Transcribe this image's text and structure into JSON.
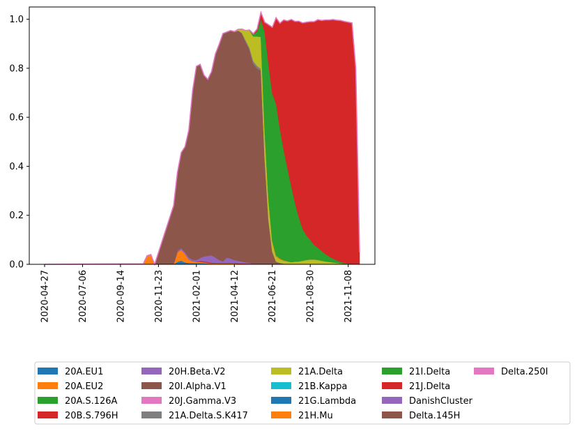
{
  "chart_data": {
    "type": "area",
    "stacked": true,
    "title": "",
    "xlabel": "",
    "ylabel": "",
    "x_range": [
      "2020-04-27",
      "2021-11-29"
    ],
    "ylim": [
      0,
      1.05
    ],
    "yticks": [
      "0.0",
      "0.2",
      "0.4",
      "0.6",
      "0.8",
      "1.0"
    ],
    "xticks": [
      "2020-04-27",
      "2020-07-06",
      "2020-09-14",
      "2020-11-23",
      "2021-02-01",
      "2021-04-12",
      "2021-06-21",
      "2021-08-30",
      "2021-11-08"
    ],
    "grid": false,
    "legend": {
      "placement": "below chart",
      "columns": 5
    },
    "x": [
      "2020-04-27",
      "2020-10-26",
      "2020-11-02",
      "2020-11-09",
      "2020-11-16",
      "2020-12-21",
      "2020-12-28",
      "2021-01-04",
      "2021-01-11",
      "2021-01-18",
      "2021-01-25",
      "2021-02-01",
      "2021-02-08",
      "2021-02-15",
      "2021-02-22",
      "2021-03-01",
      "2021-03-08",
      "2021-03-15",
      "2021-03-22",
      "2021-03-29",
      "2021-04-05",
      "2021-04-12",
      "2021-04-19",
      "2021-04-26",
      "2021-05-03",
      "2021-05-10",
      "2021-05-17",
      "2021-05-24",
      "2021-05-31",
      "2021-06-07",
      "2021-06-14",
      "2021-06-21",
      "2021-06-28",
      "2021-07-05",
      "2021-07-12",
      "2021-07-19",
      "2021-07-26",
      "2021-08-02",
      "2021-08-09",
      "2021-08-16",
      "2021-08-23",
      "2021-08-30",
      "2021-09-06",
      "2021-09-13",
      "2021-09-20",
      "2021-09-27",
      "2021-10-04",
      "2021-10-11",
      "2021-10-18",
      "2021-10-25",
      "2021-11-01",
      "2021-11-08",
      "2021-11-15",
      "2021-11-22",
      "2021-11-29"
    ],
    "series": [
      {
        "name": "20A.EU1",
        "color": "#1f77b4",
        "values": [
          0,
          0,
          0,
          0,
          0,
          0,
          0.01,
          0.015,
          0.008,
          0.005,
          0.005,
          0.005,
          0.005,
          0.004,
          0.003,
          0.002,
          0.002,
          0.002,
          0.002,
          0.002,
          0.002,
          0.002,
          0.001,
          0.001,
          0.001,
          0.001,
          0,
          0,
          0,
          0,
          0,
          0,
          0,
          0,
          0,
          0,
          0,
          0,
          0,
          0,
          0,
          0,
          0,
          0,
          0,
          0,
          0,
          0,
          0,
          0,
          0,
          0,
          0,
          0,
          0
        ]
      },
      {
        "name": "20A.EU2",
        "color": "#ff7f0e",
        "values": [
          0,
          0.002,
          0.035,
          0.04,
          0,
          0,
          0.04,
          0.045,
          0.035,
          0.015,
          0.008,
          0.005,
          0.005,
          0.004,
          0.003,
          0.002,
          0.002,
          0.002,
          0.002,
          0.002,
          0.002,
          0.002,
          0.001,
          0.001,
          0.001,
          0.001,
          0,
          0,
          0,
          0,
          0,
          0,
          0,
          0,
          0,
          0,
          0,
          0,
          0,
          0,
          0,
          0,
          0,
          0,
          0,
          0,
          0,
          0,
          0,
          0,
          0,
          0,
          0,
          0,
          0
        ]
      },
      {
        "name": "20A.S.126A",
        "color": "#2ca02c",
        "values": [
          0,
          0,
          0,
          0,
          0,
          0,
          0,
          0,
          0,
          0,
          0,
          0,
          0,
          0,
          0,
          0,
          0,
          0,
          0,
          0,
          0,
          0,
          0,
          0,
          0,
          0,
          0,
          0,
          0,
          0,
          0,
          0,
          0,
          0,
          0,
          0,
          0,
          0,
          0,
          0,
          0,
          0,
          0,
          0,
          0,
          0,
          0,
          0,
          0,
          0,
          0,
          0,
          0,
          0,
          0
        ]
      },
      {
        "name": "20B.S.796H",
        "color": "#d62728",
        "values": [
          0,
          0,
          0,
          0,
          0,
          0,
          0,
          0,
          0,
          0,
          0,
          0,
          0.004,
          0.004,
          0.004,
          0.003,
          0.002,
          0.002,
          0.002,
          0.002,
          0.002,
          0.002,
          0.002,
          0.002,
          0.001,
          0.001,
          0,
          0,
          0,
          0,
          0,
          0,
          0,
          0,
          0,
          0,
          0,
          0,
          0,
          0,
          0,
          0,
          0,
          0,
          0,
          0,
          0,
          0,
          0,
          0,
          0,
          0,
          0,
          0,
          0
        ]
      },
      {
        "name": "20H.Beta.V2",
        "color": "#9467bd",
        "values": [
          0,
          0,
          0,
          0,
          0,
          0,
          0.005,
          0.006,
          0.007,
          0.008,
          0.006,
          0.008,
          0.012,
          0.02,
          0.025,
          0.03,
          0.022,
          0.012,
          0.006,
          0.022,
          0.018,
          0.012,
          0.01,
          0.008,
          0.005,
          0.003,
          0,
          0,
          0,
          0,
          0,
          0,
          0,
          0,
          0,
          0,
          0,
          0,
          0,
          0,
          0,
          0,
          0,
          0,
          0,
          0,
          0,
          0,
          0,
          0,
          0,
          0,
          0,
          0,
          0
        ]
      },
      {
        "name": "20I.Alpha.V1",
        "color": "#8c564b",
        "values": [
          0,
          0,
          0,
          0,
          0,
          0.24,
          0.32,
          0.39,
          0.43,
          0.52,
          0.69,
          0.79,
          0.79,
          0.74,
          0.72,
          0.75,
          0.83,
          0.88,
          0.93,
          0.92,
          0.93,
          0.93,
          0.94,
          0.93,
          0.9,
          0.87,
          0.82,
          0.8,
          0.79,
          0.43,
          0.18,
          0.05,
          0.01,
          0.005,
          0.003,
          0.002,
          0.001,
          0.001,
          0,
          0,
          0,
          0,
          0,
          0,
          0,
          0,
          0,
          0,
          0,
          0,
          0,
          0,
          0,
          0,
          0
        ]
      },
      {
        "name": "20J.Gamma.V3",
        "color": "#e377c2",
        "values": [
          0,
          0,
          0,
          0,
          0,
          0,
          0,
          0,
          0,
          0,
          0,
          0,
          0,
          0,
          0,
          0,
          0,
          0,
          0,
          0,
          0,
          0,
          0,
          0,
          0,
          0,
          0,
          0,
          0,
          0,
          0,
          0,
          0,
          0,
          0,
          0,
          0,
          0,
          0,
          0,
          0,
          0,
          0,
          0,
          0,
          0,
          0,
          0,
          0,
          0,
          0,
          0,
          0,
          0,
          0
        ]
      },
      {
        "name": "21A.Delta.S.K417",
        "color": "#7f7f7f",
        "values": [
          0,
          0,
          0,
          0,
          0,
          0,
          0,
          0,
          0,
          0,
          0,
          0,
          0,
          0,
          0,
          0,
          0,
          0,
          0,
          0,
          0,
          0,
          0,
          0.003,
          0.006,
          0.008,
          0.01,
          0.01,
          0.008,
          0.006,
          0.004,
          0.003,
          0.002,
          0.001,
          0,
          0,
          0,
          0,
          0,
          0,
          0,
          0,
          0,
          0,
          0,
          0,
          0,
          0,
          0,
          0,
          0,
          0,
          0,
          0,
          0
        ]
      },
      {
        "name": "21A.Delta",
        "color": "#bcbd22",
        "values": [
          0,
          0,
          0,
          0,
          0,
          0,
          0,
          0,
          0,
          0,
          0,
          0,
          0,
          0,
          0,
          0,
          0,
          0,
          0,
          0,
          0,
          0.002,
          0.005,
          0.015,
          0.04,
          0.07,
          0.1,
          0.12,
          0.13,
          0.11,
          0.08,
          0.04,
          0.02,
          0.015,
          0.012,
          0.01,
          0.008,
          0.01,
          0.012,
          0.015,
          0.018,
          0.02,
          0.02,
          0.018,
          0.015,
          0.012,
          0.01,
          0.008,
          0.006,
          0.004,
          0.002,
          0.001,
          0,
          0,
          0
        ]
      },
      {
        "name": "21B.Kappa",
        "color": "#17becf",
        "values": [
          0,
          0,
          0,
          0,
          0,
          0,
          0,
          0,
          0,
          0,
          0,
          0,
          0,
          0,
          0,
          0,
          0,
          0,
          0,
          0,
          0,
          0,
          0,
          0,
          0,
          0,
          0,
          0,
          0,
          0,
          0,
          0,
          0,
          0,
          0,
          0,
          0,
          0,
          0,
          0,
          0,
          0,
          0,
          0,
          0,
          0,
          0,
          0,
          0,
          0,
          0,
          0,
          0,
          0,
          0
        ]
      },
      {
        "name": "21G.Lambda",
        "color": "#1f77b4",
        "values": [
          0,
          0,
          0,
          0,
          0,
          0,
          0,
          0,
          0,
          0,
          0,
          0,
          0,
          0,
          0,
          0,
          0,
          0,
          0,
          0,
          0,
          0,
          0,
          0,
          0,
          0,
          0,
          0,
          0,
          0,
          0,
          0,
          0,
          0,
          0,
          0,
          0,
          0,
          0,
          0,
          0,
          0,
          0,
          0,
          0,
          0,
          0,
          0,
          0,
          0,
          0,
          0,
          0,
          0,
          0
        ]
      },
      {
        "name": "21H.Mu",
        "color": "#ff7f0e",
        "values": [
          0,
          0,
          0,
          0,
          0,
          0,
          0,
          0,
          0,
          0,
          0,
          0,
          0,
          0,
          0,
          0,
          0,
          0,
          0,
          0,
          0,
          0,
          0,
          0,
          0,
          0,
          0,
          0,
          0,
          0.002,
          0.004,
          0.004,
          0.004,
          0.003,
          0.002,
          0.001,
          0,
          0,
          0,
          0,
          0,
          0,
          0,
          0,
          0,
          0,
          0,
          0,
          0,
          0,
          0,
          0,
          0,
          0,
          0
        ]
      },
      {
        "name": "21I.Delta",
        "color": "#2ca02c",
        "values": [
          0,
          0,
          0,
          0,
          0,
          0,
          0,
          0,
          0,
          0,
          0,
          0,
          0,
          0,
          0,
          0,
          0,
          0,
          0,
          0,
          0,
          0,
          0,
          0,
          0,
          0.002,
          0.008,
          0.02,
          0.07,
          0.4,
          0.55,
          0.6,
          0.62,
          0.53,
          0.45,
          0.38,
          0.31,
          0.24,
          0.18,
          0.13,
          0.1,
          0.08,
          0.06,
          0.05,
          0.04,
          0.03,
          0.022,
          0.016,
          0.01,
          0.006,
          0.004,
          0.002,
          0,
          0,
          0
        ]
      },
      {
        "name": "21J.Delta",
        "color": "#d62728",
        "values": [
          0,
          0,
          0,
          0,
          0,
          0,
          0,
          0,
          0,
          0,
          0,
          0,
          0,
          0,
          0,
          0,
          0,
          0,
          0,
          0,
          0,
          0,
          0,
          0,
          0,
          0,
          0.003,
          0.01,
          0.03,
          0.04,
          0.16,
          0.27,
          0.35,
          0.43,
          0.53,
          0.6,
          0.68,
          0.74,
          0.8,
          0.84,
          0.87,
          0.89,
          0.91,
          0.93,
          0.94,
          0.955,
          0.965,
          0.975,
          0.98,
          0.985,
          0.985,
          0.985,
          0.985,
          0.8,
          0.05
        ]
      },
      {
        "name": "DanishCluster",
        "color": "#9467bd",
        "values": [
          0,
          0,
          0,
          0,
          0,
          0,
          0,
          0,
          0,
          0,
          0,
          0,
          0,
          0,
          0,
          0,
          0,
          0,
          0,
          0,
          0,
          0,
          0,
          0,
          0,
          0,
          0,
          0,
          0,
          0,
          0,
          0,
          0,
          0,
          0,
          0,
          0,
          0,
          0,
          0,
          0,
          0,
          0,
          0,
          0,
          0,
          0,
          0,
          0,
          0,
          0,
          0,
          0,
          0,
          0
        ]
      },
      {
        "name": "Delta.145H",
        "color": "#8c564b",
        "values": [
          0,
          0,
          0,
          0,
          0,
          0,
          0,
          0,
          0,
          0,
          0,
          0,
          0,
          0,
          0,
          0,
          0,
          0,
          0,
          0,
          0,
          0,
          0,
          0,
          0,
          0,
          0,
          0,
          0,
          0,
          0,
          0,
          0,
          0,
          0,
          0,
          0,
          0,
          0,
          0,
          0,
          0,
          0,
          0,
          0,
          0,
          0,
          0,
          0,
          0,
          0,
          0,
          0,
          0,
          0
        ]
      },
      {
        "name": "Delta.250I",
        "color": "#e377c2",
        "values": [
          0,
          0,
          0,
          0,
          0,
          0,
          0,
          0,
          0,
          0,
          0,
          0,
          0,
          0,
          0,
          0,
          0,
          0,
          0,
          0,
          0,
          0,
          0,
          0,
          0,
          0,
          0,
          0,
          0,
          0,
          0,
          0,
          0,
          0,
          0,
          0,
          0,
          0,
          0,
          0,
          0,
          0,
          0,
          0,
          0,
          0,
          0,
          0,
          0,
          0,
          0,
          0,
          0,
          0,
          0
        ]
      }
    ]
  }
}
